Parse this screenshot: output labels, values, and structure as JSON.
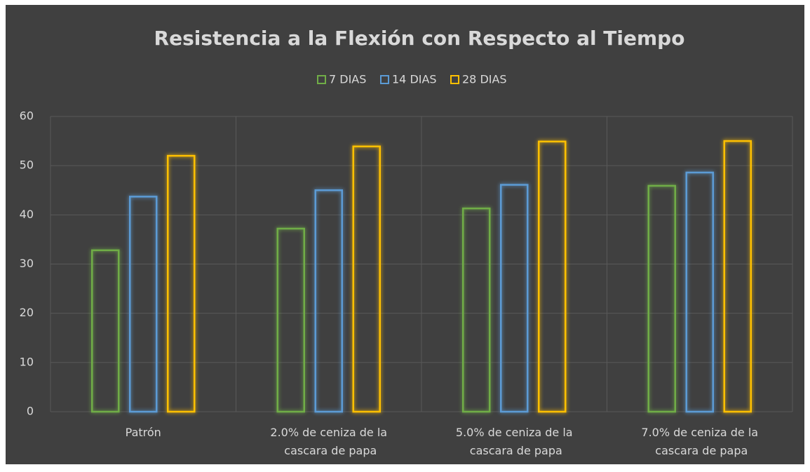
{
  "chart_data": {
    "type": "bar",
    "title": "Resistencia a la Flexión con Respecto al Tiempo",
    "categories": [
      "Patrón",
      "2.0% de ceniza de la cascara de papa",
      "5.0% de ceniza de la cascara de papa",
      "7.0% de ceniza de la cascara de papa"
    ],
    "series": [
      {
        "name": "7 DIAS",
        "color": "#70ad47",
        "values": [
          32.8,
          37.2,
          41.3,
          45.9
        ]
      },
      {
        "name": "14 DIAS",
        "color": "#5b9bd5",
        "values": [
          43.7,
          45.0,
          46.1,
          48.6
        ]
      },
      {
        "name": "28 DIAS",
        "color": "#ffc000",
        "values": [
          52.0,
          53.9,
          54.9,
          55.0
        ]
      }
    ],
    "ylim": [
      0,
      60
    ],
    "yticks": [
      0,
      10,
      20,
      30,
      40,
      50,
      60
    ],
    "grid": true,
    "legend": "top"
  }
}
